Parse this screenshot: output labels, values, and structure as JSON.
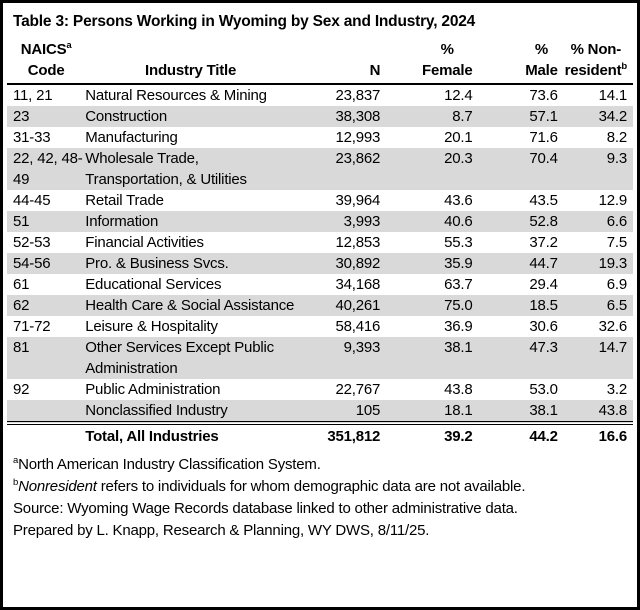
{
  "title": "Table 3: Persons Working in Wyoming by Sex and Industry, 2024",
  "table": {
    "header": {
      "code_line1": "NAICS",
      "code_sup": "a",
      "code_line2": "Code",
      "industry_title": "Industry Title",
      "n": "N",
      "female_line1": "%",
      "female_line2": "Female",
      "male_line1": "%",
      "male_line2": "Male",
      "nonres_line1": "% Non-",
      "nonres_line2": "resident",
      "nonres_sup": "b"
    },
    "rows": [
      {
        "code": "11, 21",
        "title": "Natural Resources & Mining",
        "n": "23,837",
        "female": "12.4",
        "male": "73.6",
        "nonresident": "14.1",
        "shaded": false
      },
      {
        "code": "23",
        "title": "Construction",
        "n": "38,308",
        "female": "8.7",
        "male": "57.1",
        "nonresident": "34.2",
        "shaded": true
      },
      {
        "code": "31-33",
        "title": "Manufacturing",
        "n": "12,993",
        "female": "20.1",
        "male": "71.6",
        "nonresident": "8.2",
        "shaded": false
      },
      {
        "code": "22, 42, 48-49",
        "title": "Wholesale Trade, Transportation, & Utilities",
        "n": "23,862",
        "female": "20.3",
        "male": "70.4",
        "nonresident": "9.3",
        "shaded": true
      },
      {
        "code": "44-45",
        "title": "Retail Trade",
        "n": "39,964",
        "female": "43.6",
        "male": "43.5",
        "nonresident": "12.9",
        "shaded": false
      },
      {
        "code": "51",
        "title": "Information",
        "n": "3,993",
        "female": "40.6",
        "male": "52.8",
        "nonresident": "6.6",
        "shaded": true
      },
      {
        "code": "52-53",
        "title": "Financial Activities",
        "n": "12,853",
        "female": "55.3",
        "male": "37.2",
        "nonresident": "7.5",
        "shaded": false
      },
      {
        "code": "54-56",
        "title": "Pro. & Business Svcs.",
        "n": "30,892",
        "female": "35.9",
        "male": "44.7",
        "nonresident": "19.3",
        "shaded": true
      },
      {
        "code": "61",
        "title": "Educational Services",
        "n": "34,168",
        "female": "63.7",
        "male": "29.4",
        "nonresident": "6.9",
        "shaded": false
      },
      {
        "code": "62",
        "title": "Health Care & Social Assistance",
        "n": "40,261",
        "female": "75.0",
        "male": "18.5",
        "nonresident": "6.5",
        "shaded": true
      },
      {
        "code": "71-72",
        "title": "Leisure & Hospitality",
        "n": "58,416",
        "female": "36.9",
        "male": "30.6",
        "nonresident": "32.6",
        "shaded": false
      },
      {
        "code": "81",
        "title": "Other Services Except Public Administration",
        "n": "9,393",
        "female": "38.1",
        "male": "47.3",
        "nonresident": "14.7",
        "shaded": true
      },
      {
        "code": "92",
        "title": "Public Administration",
        "n": "22,767",
        "female": "43.8",
        "male": "53.0",
        "nonresident": "3.2",
        "shaded": false
      },
      {
        "code": "",
        "title": "Nonclassified Industry",
        "n": "105",
        "female": "18.1",
        "male": "38.1",
        "nonresident": "43.8",
        "shaded": true
      }
    ],
    "total_row": {
      "title": "Total, All Industries",
      "n": "351,812",
      "female": "39.2",
      "male": "44.2",
      "nonresident": "16.6"
    }
  },
  "footnotes": {
    "a_marker": "a",
    "a_text": "North American Industry Classification System.",
    "b_marker": "b",
    "b_italic": "Nonresident",
    "b_text": " refers to individuals for whom demographic data are not available.",
    "source": "Source: Wyoming Wage Records database linked to other administrative data.",
    "prepared": "Prepared by L. Knapp, Research & Planning, WY DWS, 8/11/25."
  },
  "colors": {
    "row_shade": "#d9d9d9",
    "border": "#000000",
    "background": "#ffffff",
    "text": "#000000"
  }
}
